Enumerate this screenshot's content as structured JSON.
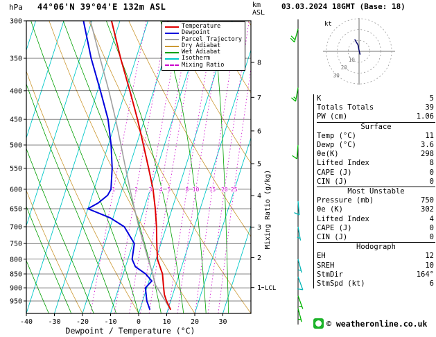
{
  "chart_data": {
    "type": "skewt-log-p",
    "title": "44°06'N 39°04'E 132m ASL",
    "datetime": "03.03.2024 18GMT (Base: 18)",
    "xlabel": "Dewpoint / Temperature (°C)",
    "pressure_unit": "hPa",
    "altitude_unit": [
      "km",
      "ASL"
    ],
    "mixing_ratio_axis_label": "Mixing Ratio (g/kg)",
    "pressure_range": [
      300,
      1000
    ],
    "temp_range": [
      -40,
      40
    ],
    "skew": 0.32,
    "pressure_ticks": [
      300,
      350,
      400,
      450,
      500,
      550,
      600,
      650,
      700,
      750,
      800,
      850,
      900,
      950
    ],
    "temp_ticks": [
      -40,
      -30,
      -20,
      -10,
      0,
      10,
      20,
      30
    ],
    "km_levels": [
      {
        "km": 8,
        "p": 356
      },
      {
        "km": 7,
        "p": 411
      },
      {
        "km": 6,
        "p": 472
      },
      {
        "km": 5,
        "p": 540
      },
      {
        "km": 4,
        "p": 616
      },
      {
        "km": 3,
        "p": 701
      },
      {
        "km": 2,
        "p": 795
      },
      {
        "km": 1,
        "p": 899
      }
    ],
    "lcl": {
      "label": "LCL",
      "p": 899
    },
    "mixing_ratio_values": [
      1,
      2,
      3,
      4,
      5,
      8,
      10,
      15,
      20,
      25
    ],
    "isotherms": {
      "start": -80,
      "end": 40,
      "step": 10
    },
    "dry_adiabats": {
      "start": -40,
      "end": 120,
      "step": 20
    },
    "wet_adiabats": {
      "start": -32,
      "end": 40,
      "step": 8
    },
    "legend": [
      {
        "label": "Temperature",
        "color": "#e00000",
        "style": "solid"
      },
      {
        "label": "Dewpoint",
        "color": "#0000dd",
        "style": "solid"
      },
      {
        "label": "Parcel Trajectory",
        "color": "#a0a0a0",
        "style": "solid"
      },
      {
        "label": "Dry Adiabat",
        "color": "#cc9933",
        "style": "solid"
      },
      {
        "label": "Wet Adiabat",
        "color": "#00a000",
        "style": "solid"
      },
      {
        "label": "Isotherm",
        "color": "#00c8c8",
        "style": "solid"
      },
      {
        "label": "Mixing Ratio",
        "color": "#cc00cc",
        "style": "dashed"
      }
    ],
    "temperature_profile": [
      [
        985,
        11
      ],
      [
        950,
        8.5
      ],
      [
        925,
        7
      ],
      [
        900,
        6
      ],
      [
        850,
        4
      ],
      [
        800,
        0.5
      ],
      [
        750,
        -1.5
      ],
      [
        700,
        -3.5
      ],
      [
        650,
        -6
      ],
      [
        600,
        -9
      ],
      [
        550,
        -13
      ],
      [
        500,
        -17.5
      ],
      [
        450,
        -22.5
      ],
      [
        400,
        -28.5
      ],
      [
        350,
        -35.5
      ],
      [
        300,
        -43
      ]
    ],
    "dewpoint_profile": [
      [
        985,
        3.6
      ],
      [
        950,
        1.5
      ],
      [
        925,
        0.5
      ],
      [
        900,
        -0.5
      ],
      [
        875,
        1
      ],
      [
        850,
        -2
      ],
      [
        825,
        -6.5
      ],
      [
        800,
        -8.5
      ],
      [
        750,
        -9.5
      ],
      [
        700,
        -15
      ],
      [
        675,
        -21
      ],
      [
        650,
        -30
      ],
      [
        635,
        -27
      ],
      [
        615,
        -24.5
      ],
      [
        600,
        -24
      ],
      [
        550,
        -26
      ],
      [
        500,
        -29
      ],
      [
        450,
        -33
      ],
      [
        400,
        -39
      ],
      [
        350,
        -46
      ],
      [
        300,
        -53
      ]
    ],
    "parcel_profile": [
      [
        985,
        11
      ],
      [
        940,
        7.2
      ],
      [
        890,
        2.8
      ],
      [
        850,
        0.5
      ],
      [
        800,
        -2.8
      ],
      [
        750,
        -6.2
      ],
      [
        700,
        -9.8
      ],
      [
        650,
        -13.4
      ],
      [
        600,
        -17.2
      ],
      [
        550,
        -21.2
      ],
      [
        500,
        -25.5
      ],
      [
        450,
        -30.3
      ],
      [
        400,
        -36
      ],
      [
        350,
        -42.8
      ],
      [
        300,
        -50.5
      ]
    ],
    "wind_barbs": [
      {
        "p": 310,
        "dir": 195,
        "spd": 20,
        "color": "#00b400"
      },
      {
        "p": 395,
        "dir": 190,
        "spd": 15,
        "color": "#00b400"
      },
      {
        "p": 500,
        "dir": 185,
        "spd": 10,
        "color": "#00b400"
      },
      {
        "p": 630,
        "dir": 175,
        "spd": 10,
        "color": "#00b4b4"
      },
      {
        "p": 700,
        "dir": 170,
        "spd": 5,
        "color": "#00b4b4"
      },
      {
        "p": 800,
        "dir": 165,
        "spd": 5,
        "color": "#00b4b4"
      },
      {
        "p": 860,
        "dir": 160,
        "spd": 10,
        "color": "#00b4b4"
      },
      {
        "p": 930,
        "dir": 160,
        "spd": 5,
        "color": "#00b400"
      },
      {
        "p": 980,
        "dir": 165,
        "spd": 5,
        "color": "#00b400"
      }
    ],
    "hodograph": {
      "unit_label": "kt",
      "ring_values": [
        10,
        20,
        30
      ],
      "trace_uv": [
        [
          1,
          -3
        ],
        [
          0,
          1
        ],
        [
          -1,
          6
        ],
        [
          -4,
          11
        ]
      ]
    }
  },
  "panel": {
    "sections": [
      {
        "header": "",
        "rows": [
          [
            "K",
            "5"
          ],
          [
            "Totals Totals",
            "39"
          ],
          [
            "PW (cm)",
            "1.06"
          ]
        ]
      },
      {
        "header": "Surface",
        "rows": [
          [
            "Temp (°C)",
            "11"
          ],
          [
            "Dewp (°C)",
            "3.6"
          ],
          [
            "θe(K)",
            "298"
          ],
          [
            "Lifted Index",
            "8"
          ],
          [
            "CAPE (J)",
            "0"
          ],
          [
            "CIN (J)",
            "0"
          ]
        ]
      },
      {
        "header": "Most Unstable",
        "rows": [
          [
            "Pressure (mb)",
            "750"
          ],
          [
            "θe (K)",
            "302"
          ],
          [
            "Lifted Index",
            "4"
          ],
          [
            "CAPE (J)",
            "0"
          ],
          [
            "CIN (J)",
            "0"
          ]
        ]
      },
      {
        "header": "Hodograph",
        "rows": [
          [
            "EH",
            "12"
          ],
          [
            "SREH",
            "10"
          ],
          [
            "StmDir",
            "164°"
          ],
          [
            "StmSpd (kt)",
            "6"
          ]
        ]
      }
    ]
  },
  "footer": {
    "site": "© weatheronline.co.uk"
  }
}
